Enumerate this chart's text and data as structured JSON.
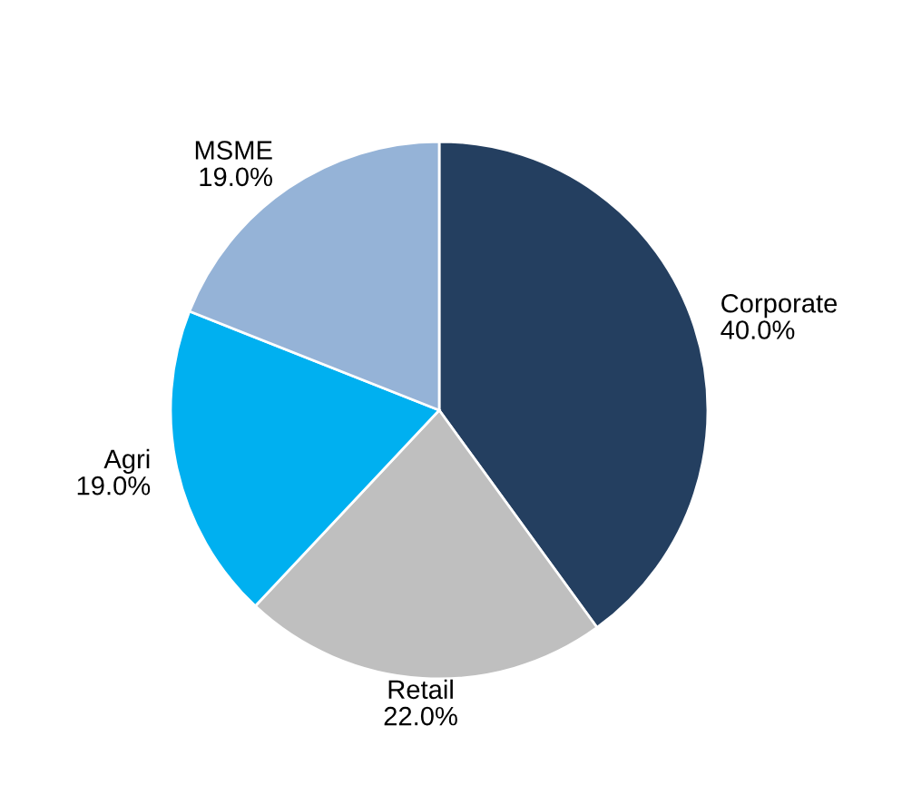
{
  "chart_data": {
    "type": "pie",
    "categories": [
      "Corporate",
      "Retail",
      "Agri",
      "MSME"
    ],
    "values": [
      40.0,
      22.0,
      19.0,
      19.0
    ],
    "value_labels": [
      "40.0%",
      "22.0%",
      "19.0%",
      "19.0%"
    ],
    "colors": [
      "#243f60",
      "#bfbfbf",
      "#00b0f0",
      "#95b3d7"
    ],
    "legend": false
  }
}
